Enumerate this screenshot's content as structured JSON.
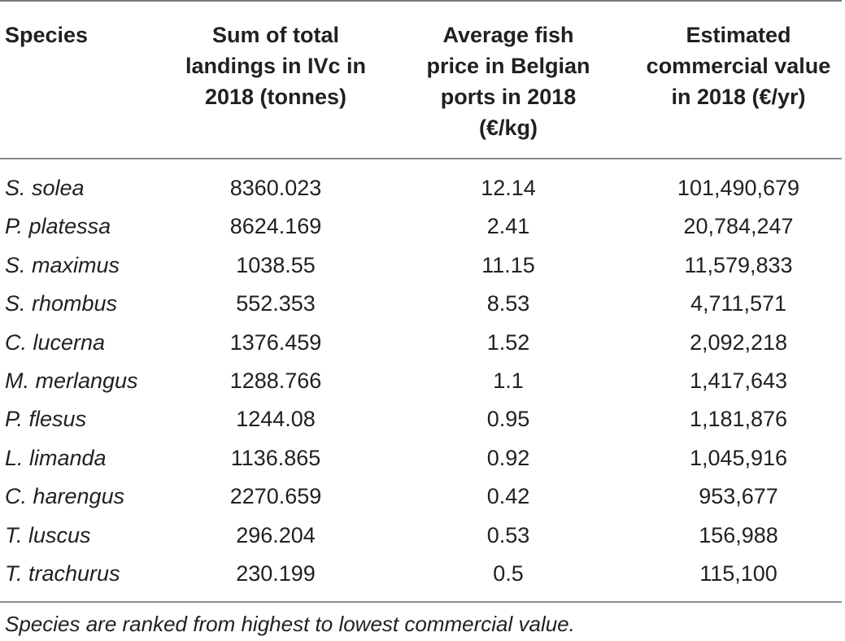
{
  "table": {
    "headers": {
      "species": "Species",
      "landings": [
        "Sum of total",
        "landings in IVc in",
        "2018 (tonnes)"
      ],
      "price": [
        "Average fish",
        "price in Belgian",
        "ports in 2018",
        "(€/kg)"
      ],
      "value": [
        "Estimated",
        "commercial value",
        "in 2018 (€/yr)"
      ]
    },
    "rows": [
      {
        "species": "S. solea",
        "landings": "8360.023",
        "price": "12.14",
        "value": "101,490,679"
      },
      {
        "species": "P. platessa",
        "landings": "8624.169",
        "price": "2.41",
        "value": "20,784,247"
      },
      {
        "species": "S. maximus",
        "landings": "1038.55",
        "price": "11.15",
        "value": "11,579,833"
      },
      {
        "species": "S. rhombus",
        "landings": "552.353",
        "price": "8.53",
        "value": "4,711,571"
      },
      {
        "species": "C. lucerna",
        "landings": "1376.459",
        "price": "1.52",
        "value": "2,092,218"
      },
      {
        "species": "M. merlangus",
        "landings": "1288.766",
        "price": "1.1",
        "value": "1,417,643"
      },
      {
        "species": "P. flesus",
        "landings": "1244.08",
        "price": "0.95",
        "value": "1,181,876"
      },
      {
        "species": "L. limanda",
        "landings": "1136.865",
        "price": "0.92",
        "value": "1,045,916"
      },
      {
        "species": "C. harengus",
        "landings": "2270.659",
        "price": "0.42",
        "value": "953,677"
      },
      {
        "species": "T. luscus",
        "landings": "296.204",
        "price": "0.53",
        "value": "156,988"
      },
      {
        "species": "T. trachurus",
        "landings": "230.199",
        "price": "0.5",
        "value": "115,100"
      }
    ],
    "footnote": "Species are ranked from highest to lowest commercial value."
  }
}
